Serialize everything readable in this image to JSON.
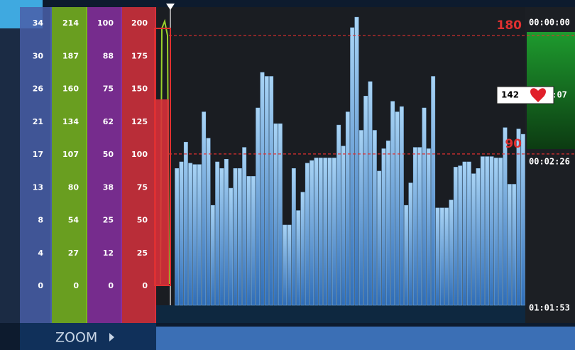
{
  "chart_data": {
    "type": "bar",
    "values": [
      79,
      84,
      99,
      83,
      82,
      82,
      122,
      102,
      51,
      84,
      79,
      86,
      64,
      79,
      79,
      95,
      73,
      73,
      125,
      152,
      149,
      149,
      113,
      113,
      36,
      36,
      79,
      47,
      61,
      83,
      85,
      87,
      87,
      87,
      87,
      87,
      112,
      96,
      122,
      186,
      194,
      108,
      134,
      145,
      108,
      77,
      94,
      100,
      130,
      122,
      126,
      51,
      68,
      95,
      95,
      125,
      94,
      149,
      49,
      49,
      49,
      55,
      80,
      81,
      84,
      84,
      75,
      79,
      88,
      88,
      88,
      87,
      87,
      110,
      67,
      67,
      109,
      105
    ],
    "color": "#7fb6e6",
    "ylim": [
      -25,
      200
    ],
    "reference_lines": [
      180,
      90
    ],
    "reference_color": "#e03030",
    "scales": [
      {
        "color": "#4a5fa8",
        "ticks": [
          34,
          30,
          26,
          21,
          17,
          13,
          8,
          4,
          0
        ]
      },
      {
        "color": "#7ab51d",
        "ticks": [
          214,
          187,
          160,
          134,
          107,
          80,
          54,
          27,
          0
        ]
      },
      {
        "color": "#8a2f9e",
        "ticks": [
          100,
          88,
          75,
          62,
          50,
          38,
          25,
          12,
          0
        ]
      },
      {
        "color": "#d8303a",
        "ticks": [
          200,
          175,
          150,
          125,
          100,
          75,
          50,
          25,
          0
        ]
      }
    ]
  },
  "panel": {
    "times": [
      "00:00:00",
      "0:07",
      "00:02:26",
      "01:01:53"
    ],
    "heart_rate": 142,
    "zoom": "ZOOM"
  }
}
